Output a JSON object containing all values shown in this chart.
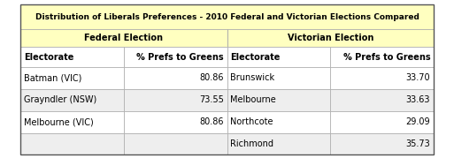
{
  "title": "Distribution of Liberals Preferences - 2010 Federal and Victorian Elections Compared",
  "title_bg": "#FFFFC0",
  "header1": "Federal Election",
  "header2": "Victorian Election",
  "header_bg": "#FFFFC0",
  "col_headers": [
    "Electorate",
    "% Prefs to Greens",
    "Electorate",
    "% Prefs to Greens"
  ],
  "col_header_bg": "#FFFFFF",
  "federal_data": [
    [
      "Batman (VIC)",
      "80.86"
    ],
    [
      "Grayndler (NSW)",
      "73.55"
    ],
    [
      "Melbourne (VIC)",
      "80.86"
    ]
  ],
  "victorian_data": [
    [
      "Brunswick",
      "33.70"
    ],
    [
      "Melbourne",
      "33.63"
    ],
    [
      "Northcote",
      "29.09"
    ],
    [
      "Richmond",
      "35.73"
    ]
  ],
  "row_bg_odd": "#FFFFFF",
  "row_bg_even": "#EEEEEE",
  "border_color": "#AAAAAA",
  "outer_border_color": "#555555",
  "text_color": "#000000"
}
